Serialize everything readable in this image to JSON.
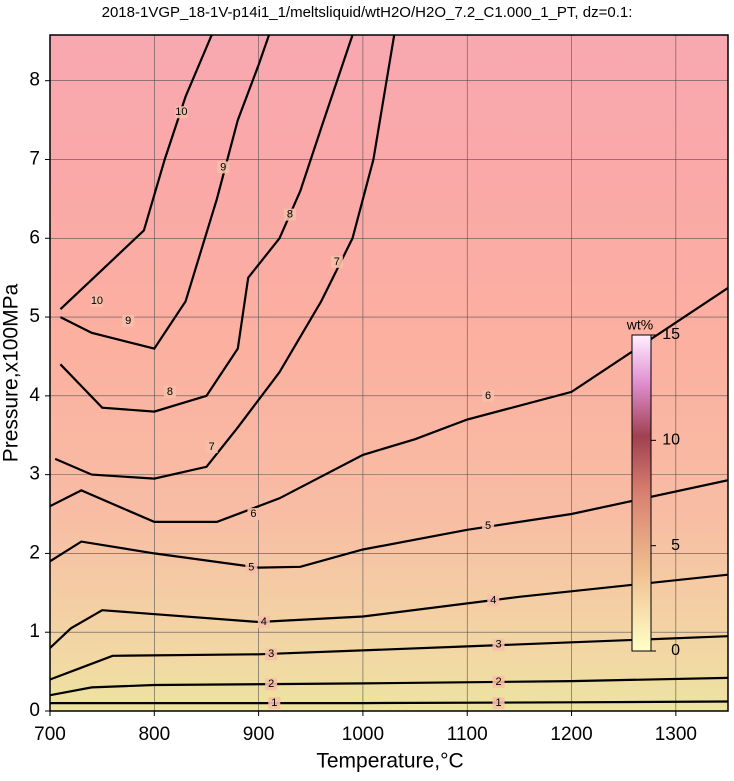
{
  "chart_data": {
    "type": "contour",
    "title": "2018-1VGP_18-1V-p14i1_1/meltsliquid/wtH2O/H2O_7.2_C1.000_1_PT, dz=0.1:",
    "x_label": "Temperature,°C",
    "y_label": "Pressure,x100MPa",
    "xlim": [
      700,
      1350
    ],
    "ylim": [
      0,
      8.58
    ],
    "xticks": [
      700,
      800,
      900,
      1000,
      1100,
      1200,
      1300
    ],
    "yticks": [
      0,
      1,
      2,
      3,
      4,
      5,
      6,
      7,
      8
    ],
    "grid": true,
    "colorbar": {
      "label": "wt%",
      "lim": [
        0,
        15
      ],
      "ticks": [
        0,
        5,
        10,
        15
      ]
    },
    "contours": [
      {
        "level": 1,
        "x": [
          700,
          800,
          1000,
          1200,
          1350
        ],
        "y": [
          0.1,
          0.1,
          0.1,
          0.11,
          0.12
        ],
        "labels": [
          [
            915,
            0.1
          ],
          [
            1130,
            0.1
          ]
        ]
      },
      {
        "level": 2,
        "x": [
          700,
          740,
          800,
          1000,
          1200,
          1350
        ],
        "y": [
          0.2,
          0.3,
          0.33,
          0.35,
          0.38,
          0.42
        ],
        "labels": [
          [
            912,
            0.34
          ],
          [
            1130,
            0.37
          ]
        ]
      },
      {
        "level": 3,
        "x": [
          700,
          730,
          760,
          900,
          1100,
          1350
        ],
        "y": [
          0.4,
          0.55,
          0.7,
          0.72,
          0.82,
          0.95
        ],
        "labels": [
          [
            912,
            0.72
          ],
          [
            1130,
            0.84
          ]
        ]
      },
      {
        "level": 4,
        "x": [
          700,
          720,
          750,
          900,
          1000,
          1150,
          1350
        ],
        "y": [
          0.8,
          1.05,
          1.28,
          1.13,
          1.2,
          1.45,
          1.73
        ],
        "labels": [
          [
            905,
            1.13
          ],
          [
            1125,
            1.4
          ]
        ]
      },
      {
        "level": 5,
        "x": [
          700,
          730,
          800,
          900,
          940,
          1000,
          1100,
          1200,
          1350
        ],
        "y": [
          1.9,
          2.15,
          2.0,
          1.82,
          1.83,
          2.05,
          2.3,
          2.5,
          2.93
        ],
        "labels": [
          [
            893,
            1.82
          ],
          [
            1120,
            2.35
          ]
        ]
      },
      {
        "level": 6,
        "x": [
          700,
          730,
          800,
          860,
          920,
          1000,
          1050,
          1100,
          1200,
          1350
        ],
        "y": [
          2.6,
          2.8,
          2.4,
          2.4,
          2.7,
          3.25,
          3.45,
          3.7,
          4.05,
          5.37
        ],
        "labels": [
          [
            895,
            2.5
          ],
          [
            1120,
            4.0
          ]
        ]
      },
      {
        "level": 7,
        "x": [
          705,
          740,
          800,
          850,
          880,
          920,
          960,
          990,
          1010,
          1030
        ],
        "y": [
          3.2,
          3.0,
          2.95,
          3.1,
          3.6,
          4.3,
          5.2,
          6.0,
          7.0,
          8.58
        ],
        "labels": [
          [
            855,
            3.35
          ],
          [
            975,
            5.7
          ]
        ]
      },
      {
        "level": 8,
        "x": [
          710,
          750,
          800,
          850,
          880,
          890,
          920,
          940,
          960,
          990
        ],
        "y": [
          4.4,
          3.85,
          3.8,
          4.0,
          4.6,
          5.5,
          6.0,
          6.6,
          7.4,
          8.58
        ],
        "labels": [
          [
            815,
            4.05
          ],
          [
            930,
            6.3
          ]
        ]
      },
      {
        "level": 9,
        "x": [
          710,
          740,
          800,
          830,
          860,
          880,
          900,
          910
        ],
        "y": [
          5.0,
          4.8,
          4.6,
          5.2,
          6.5,
          7.5,
          8.2,
          8.58
        ],
        "labels": [
          [
            775,
            4.95
          ],
          [
            866,
            6.9
          ]
        ]
      },
      {
        "level": 10,
        "x": [
          710,
          750,
          790,
          810,
          830,
          855
        ],
        "y": [
          5.1,
          5.6,
          6.1,
          7.0,
          7.8,
          8.58
        ],
        "labels": [
          [
            745,
            5.2
          ],
          [
            826,
            7.6
          ]
        ]
      }
    ]
  }
}
